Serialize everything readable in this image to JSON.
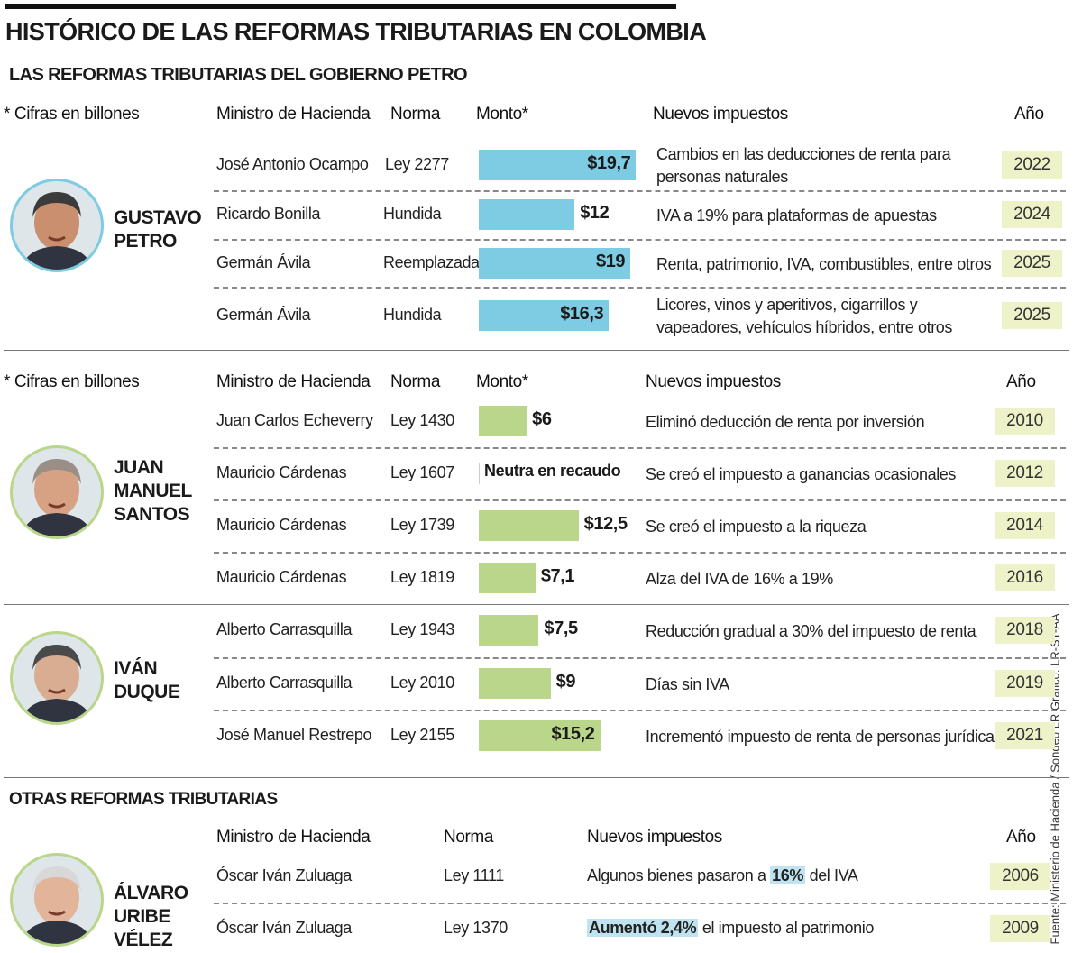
{
  "title": "HISTÓRICO DE LAS REFORMAS TRIBUTARIAS EN COLOMBIA",
  "subtitle": "LAS REFORMAS TRIBUTARIAS DEL GOBIERNO PETRO",
  "other_title": "OTRAS REFORMAS TRIBUTARIAS",
  "source": "Fuente: Ministerio de Hacienda / Sondeo LR Gráfico: LR-ST-AA",
  "colors": {
    "petro_bar": "#7ecbe4",
    "santos_duque_bar": "#b9d68a",
    "year_bg": "#eef2c8",
    "highlight": "#bfe3f0"
  },
  "headers": {
    "note": "* Cifras en billones",
    "minister": "Ministro de Hacienda",
    "norma": "Norma",
    "monto": "Monto*",
    "impuestos": "Nuevos impuestos",
    "anio": "Año"
  },
  "chart_data": {
    "type": "bar",
    "unit": "billones de pesos",
    "groups": [
      {
        "president": "GUSTAVO PETRO",
        "rows": [
          {
            "minister": "José Antonio Ocampo",
            "norma": "Ley 2277",
            "value": 19.7,
            "label": "$19,7",
            "taxes": "Cambios en las deducciones de renta para personas naturales",
            "year": "2022"
          },
          {
            "minister": "Ricardo Bonilla",
            "norma": "Hundida",
            "value": 12,
            "label": "$12",
            "taxes": "IVA a 19% para plataformas de apuestas",
            "year": "2024"
          },
          {
            "minister": "Germán Ávila",
            "norma": "Reemplazada",
            "value": 19,
            "label": "$19",
            "taxes": "Renta, patrimonio, IVA, combustibles, entre otros",
            "year": "2025"
          },
          {
            "minister": "Germán Ávila",
            "norma": "Hundida",
            "value": 16.3,
            "label": "$16,3",
            "taxes": "Licores, vinos y aperitivos, cigarrillos y vapeadores, vehículos híbridos, entre otros",
            "year": "2025"
          }
        ]
      },
      {
        "president": "JUAN MANUEL SANTOS",
        "rows": [
          {
            "minister": "Juan Carlos Echeverry",
            "norma": "Ley 1430",
            "value": 6,
            "label": "$6",
            "taxes": "Eliminó deducción de renta por inversión",
            "year": "2010"
          },
          {
            "minister": "Mauricio Cárdenas",
            "norma": "Ley 1607",
            "value": 0,
            "label": "Neutra en recaudo",
            "taxes": "Se creó el impuesto a ganancias ocasionales",
            "year": "2012"
          },
          {
            "minister": "Mauricio Cárdenas",
            "norma": "Ley 1739",
            "value": 12.5,
            "label": "$12,5",
            "taxes": "Se creó el impuesto a la riqueza",
            "year": "2014"
          },
          {
            "minister": "Mauricio Cárdenas",
            "norma": "Ley 1819",
            "value": 7.1,
            "label": "$7,1",
            "taxes": "Alza del IVA de 16% a 19%",
            "year": "2016"
          }
        ]
      },
      {
        "president": "IVÁN DUQUE",
        "rows": [
          {
            "minister": "Alberto Carrasquilla",
            "norma": "Ley 1943",
            "value": 7.5,
            "label": "$7,5",
            "taxes": "Reducción gradual a 30% del impuesto de renta",
            "year": "2018"
          },
          {
            "minister": "Alberto Carrasquilla",
            "norma": "Ley 2010",
            "value": 9,
            "label": "$9",
            "taxes": "Días sin IVA",
            "year": "2019"
          },
          {
            "minister": "José Manuel Restrepo",
            "norma": "Ley 2155",
            "value": 15.2,
            "label": "$15,2",
            "taxes": "Incrementó impuesto de renta de personas jurídicas",
            "year": "2021"
          }
        ]
      }
    ]
  },
  "uribe": {
    "president": "ÁLVARO URIBE VÉLEZ",
    "rows": [
      {
        "minister": "Óscar Iván Zuluaga",
        "norma": "Ley 1111",
        "taxes_pre": "Algunos bienes pasaron a ",
        "taxes_hl": "16%",
        "taxes_post": " del IVA",
        "year": "2006"
      },
      {
        "minister": "Óscar Iván Zuluaga",
        "norma": "Ley 1370",
        "taxes_pre": "",
        "taxes_hl": "Aumentó 2,4%",
        "taxes_post": " el impuesto al patrimonio",
        "year": "2009"
      }
    ]
  }
}
